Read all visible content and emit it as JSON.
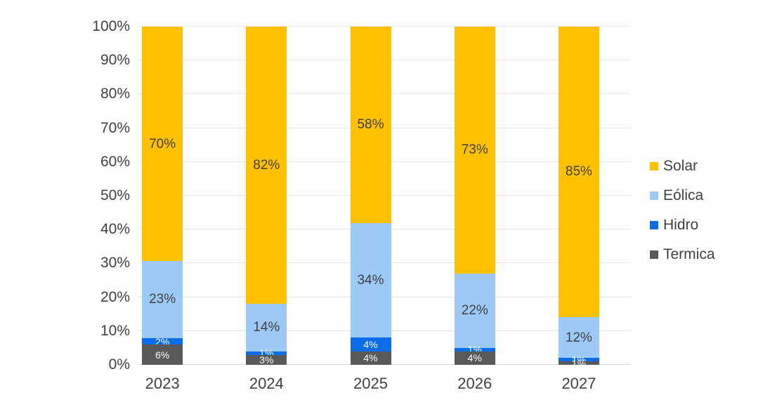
{
  "chart_data": {
    "type": "bar",
    "variant": "stacked-100-percent-column",
    "title": "",
    "xlabel": "",
    "ylabel": "",
    "categories": [
      "2023",
      "2024",
      "2025",
      "2026",
      "2027"
    ],
    "series": [
      {
        "name": "Solar",
        "color": "#FFC000",
        "label_color": "#404040",
        "label_size": 19,
        "values": [
          70,
          82,
          58,
          73,
          85
        ]
      },
      {
        "name": "Eólica",
        "color": "#9CC9F5",
        "label_color": "#404040",
        "label_size": 19,
        "values": [
          23,
          14,
          34,
          22,
          12
        ]
      },
      {
        "name": "Hidro",
        "color": "#0B6EE8",
        "label_color": "#FFFFFF",
        "label_size": 14,
        "values": [
          2,
          1,
          4,
          1,
          1
        ]
      },
      {
        "name": "Termica",
        "color": "#595959",
        "label_color": "#FFFFFF",
        "label_size": 14,
        "values": [
          6,
          3,
          4,
          4,
          1
        ]
      }
    ],
    "stack_order_bottom_to_top": [
      "Termica",
      "Hidro",
      "Eólica",
      "Solar"
    ],
    "data_label_unit": "%",
    "y_axis": {
      "min": 0,
      "max": 100,
      "step": 10,
      "ticks": [
        "0%",
        "10%",
        "20%",
        "30%",
        "40%",
        "50%",
        "60%",
        "70%",
        "80%",
        "90%",
        "100%"
      ]
    },
    "grid": true,
    "gridline_color": "#E4E4E4",
    "axis_text_color": "#404040",
    "legend": {
      "position": "right",
      "items": [
        "Solar",
        "Eólica",
        "Hidro",
        "Termica"
      ]
    }
  }
}
